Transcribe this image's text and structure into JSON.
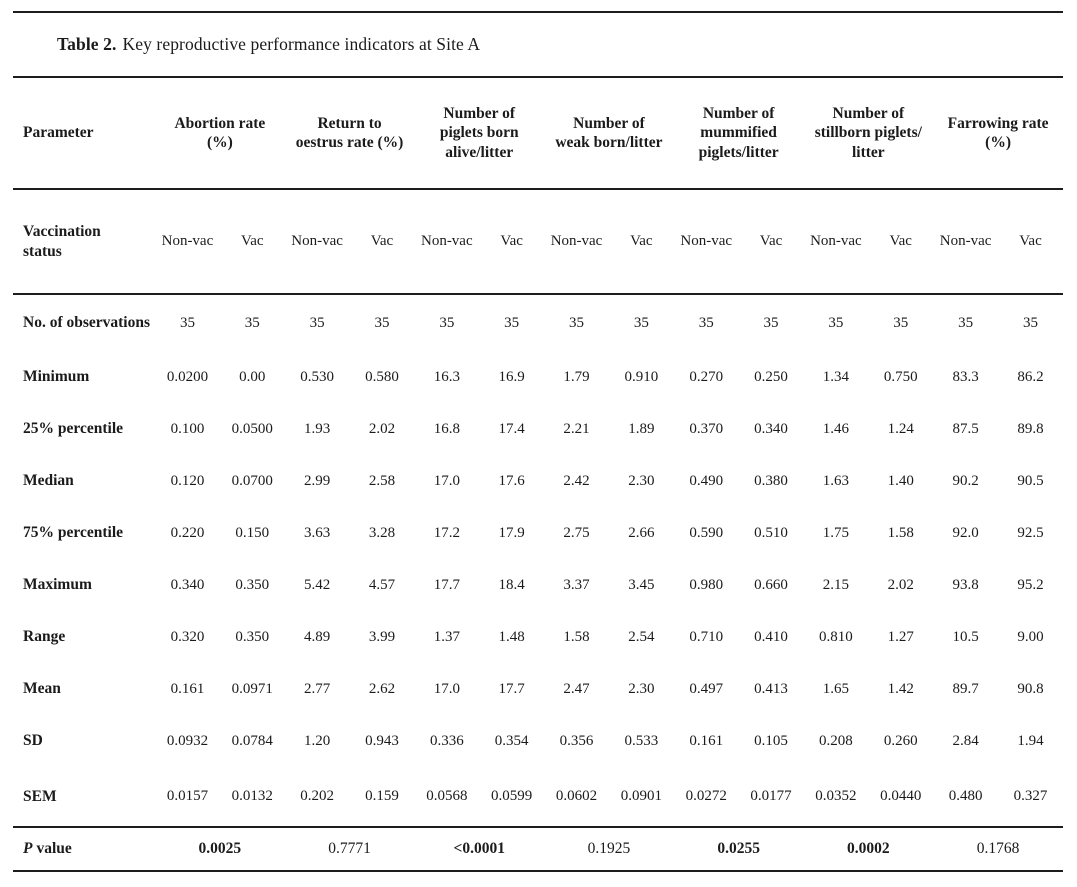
{
  "title": {
    "prefix": "Table 2.",
    "text": "Key reproductive performance indicators at Site A"
  },
  "table": {
    "parameter_header": "Parameter",
    "group_headers": [
      "Abortion rate (%)",
      "Return to oestrus rate (%)",
      "Number of piglets born alive/litter",
      "Number of weak born/litter",
      "Number of mummified piglets/litter",
      "Number of stillborn piglets/litter",
      "Farrowing rate (%)"
    ],
    "vaccination_row": {
      "label": "Vaccination status",
      "cells": [
        "Non-vac",
        "Vac",
        "Non-vac",
        "Vac",
        "Non-vac",
        "Vac",
        "Non-vac",
        "Vac",
        "Non-vac",
        "Vac",
        "Non-vac",
        "Vac",
        "Non-vac",
        "Vac"
      ]
    },
    "data_rows": [
      {
        "label": "No. of observations",
        "values": [
          "35",
          "35",
          "35",
          "35",
          "35",
          "35",
          "35",
          "35",
          "35",
          "35",
          "35",
          "35",
          "35",
          "35"
        ]
      },
      {
        "label": "Minimum",
        "values": [
          "0.0200",
          "0.00",
          "0.530",
          "0.580",
          "16.3",
          "16.9",
          "1.79",
          "0.910",
          "0.270",
          "0.250",
          "1.34",
          "0.750",
          "83.3",
          "86.2"
        ]
      },
      {
        "label": "25% percentile",
        "values": [
          "0.100",
          "0.0500",
          "1.93",
          "2.02",
          "16.8",
          "17.4",
          "2.21",
          "1.89",
          "0.370",
          "0.340",
          "1.46",
          "1.24",
          "87.5",
          "89.8"
        ]
      },
      {
        "label": "Median",
        "values": [
          "0.120",
          "0.0700",
          "2.99",
          "2.58",
          "17.0",
          "17.6",
          "2.42",
          "2.30",
          "0.490",
          "0.380",
          "1.63",
          "1.40",
          "90.2",
          "90.5"
        ]
      },
      {
        "label": "75% percentile",
        "values": [
          "0.220",
          "0.150",
          "3.63",
          "3.28",
          "17.2",
          "17.9",
          "2.75",
          "2.66",
          "0.590",
          "0.510",
          "1.75",
          "1.58",
          "92.0",
          "92.5"
        ]
      },
      {
        "label": "Maximum",
        "values": [
          "0.340",
          "0.350",
          "5.42",
          "4.57",
          "17.7",
          "18.4",
          "3.37",
          "3.45",
          "0.980",
          "0.660",
          "2.15",
          "2.02",
          "93.8",
          "95.2"
        ]
      },
      {
        "label": "Range",
        "values": [
          "0.320",
          "0.350",
          "4.89",
          "3.99",
          "1.37",
          "1.48",
          "1.58",
          "2.54",
          "0.710",
          "0.410",
          "0.810",
          "1.27",
          "10.5",
          "9.00"
        ]
      },
      {
        "label": "Mean",
        "values": [
          "0.161",
          "0.0971",
          "2.77",
          "2.62",
          "17.0",
          "17.7",
          "2.47",
          "2.30",
          "0.497",
          "0.413",
          "1.65",
          "1.42",
          "89.7",
          "90.8"
        ]
      },
      {
        "label": "SD",
        "values": [
          "0.0932",
          "0.0784",
          "1.20",
          "0.943",
          "0.336",
          "0.354",
          "0.356",
          "0.533",
          "0.161",
          "0.105",
          "0.208",
          "0.260",
          "2.84",
          "1.94"
        ]
      },
      {
        "label": "SEM",
        "values": [
          "0.0157",
          "0.0132",
          "0.202",
          "0.159",
          "0.0568",
          "0.0599",
          "0.0602",
          "0.0901",
          "0.0272",
          "0.0177",
          "0.0352",
          "0.0440",
          "0.480",
          "0.327"
        ]
      }
    ],
    "p_value_row": {
      "label_italic": "P",
      "label_rest": "value",
      "values": [
        {
          "text": "0.0025",
          "bold": true
        },
        {
          "text": "0.7771",
          "bold": false
        },
        {
          "text": "<0.0001",
          "bold": true
        },
        {
          "text": "0.1925",
          "bold": false
        },
        {
          "text": "0.0255",
          "bold": true
        },
        {
          "text": "0.0002",
          "bold": true
        },
        {
          "text": "0.1768",
          "bold": false
        }
      ]
    }
  },
  "colors": {
    "text": "#1b1b1b",
    "rule": "#1d1d1d",
    "background": "#ffffff"
  }
}
